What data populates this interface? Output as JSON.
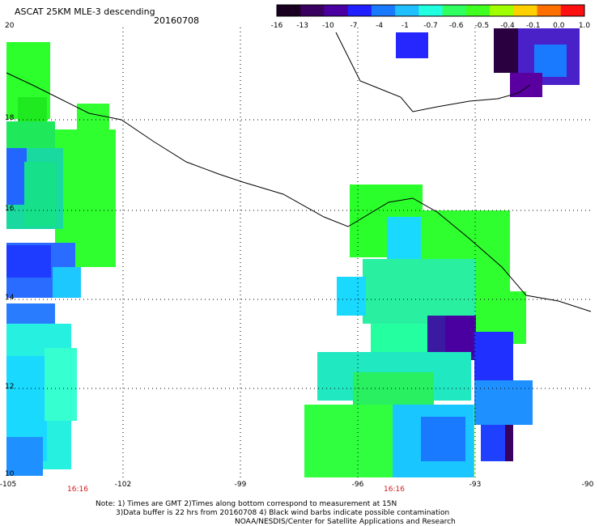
{
  "header": {
    "title": "ASCAT 25KM MLE-3 descending",
    "date": "20160708"
  },
  "colorbar": {
    "ticks": [
      "-16",
      "-13",
      "-10",
      "-7",
      "-4",
      "-1",
      "-0.7",
      "-0.6",
      "-0.5",
      "-0.4",
      "-0.1",
      "0.0",
      "1.0"
    ],
    "colors": [
      "#1a0020",
      "#3a0060",
      "#4a00a0",
      "#2020ff",
      "#1a7aff",
      "#20c0ff",
      "#20ffe0",
      "#30ff60",
      "#40ff20",
      "#a0ff00",
      "#ffd000",
      "#ff7000",
      "#ff1010"
    ]
  },
  "axes": {
    "lat_labels": [
      "20",
      "18",
      "16",
      "14",
      "12",
      "10"
    ],
    "lon_labels": [
      "-105",
      "-102",
      "-99",
      "-96",
      "-93",
      "-90"
    ],
    "time_labels": [
      "16:16",
      "16:16"
    ]
  },
  "footer": {
    "note1": "Note: 1) Times are GMT 2)Times along bottom correspond to measurement at 15N",
    "note2": "3)Data buffer is 22 hrs from 20160708 4) Black wind barbs indicate possible contamination",
    "note3": "NOAA/NESDIS/Center for Satellite Applications and Research"
  },
  "map": {
    "lon_range": [
      -105,
      -90
    ],
    "lat_range": [
      10,
      20
    ],
    "grid": true
  }
}
